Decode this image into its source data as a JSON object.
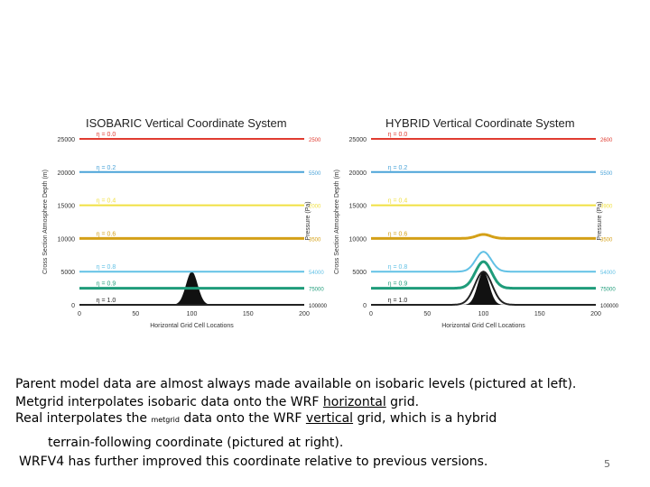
{
  "chart_data": [
    {
      "type": "line",
      "title": "ISOBARIC Vertical Coordinate System",
      "xlabel": "Horizontal Grid Cell Locations",
      "ylabel": "Cross Section Atmosphere Depth (m)",
      "y2label": "Pressure (Pa)",
      "xlim": [
        0,
        200
      ],
      "ylim": [
        0,
        25000
      ],
      "xticks": [
        "0",
        "50",
        "100",
        "150",
        "200"
      ],
      "yticks": [
        "25000",
        "20000",
        "15000",
        "10000",
        "5000",
        "0"
      ],
      "series": [
        {
          "name": "η = 0.0",
          "color": "#e03c31",
          "right_label": "2500",
          "height_m": 25000,
          "bump_m": 0
        },
        {
          "name": "η = 0.2",
          "color": "#4aa3d8",
          "right_label": "5500",
          "height_m": 20000,
          "bump_m": 0
        },
        {
          "name": "η = 0.4",
          "color": "#f0e042",
          "right_label": "2000",
          "height_m": 15000,
          "bump_m": 0
        },
        {
          "name": "η = 0.6",
          "color": "#d4a017",
          "right_label": "3500",
          "height_m": 10000,
          "bump_m": 0
        },
        {
          "name": "η = 0.8",
          "color": "#62c1e5",
          "right_label": "54000",
          "height_m": 5000,
          "bump_m": 0
        },
        {
          "name": "η = 0.9",
          "color": "#1f9c7a",
          "right_label": "75000",
          "height_m": 2500,
          "bump_m": 0
        },
        {
          "name": "η = 1.0",
          "color": "#222222",
          "right_label": "100000",
          "height_m": 0,
          "bump_m": 0
        }
      ],
      "terrain": {
        "peak_x": 100,
        "peak_m": 5000
      }
    },
    {
      "type": "line",
      "title": "HYBRID Vertical Coordinate System",
      "xlabel": "Horizontal Grid Cell Locations",
      "ylabel": "Cross Section Atmosphere Depth (m)",
      "y2label": "Pressure (Pa)",
      "xlim": [
        0,
        200
      ],
      "ylim": [
        0,
        25000
      ],
      "xticks": [
        "0",
        "50",
        "100",
        "150",
        "200"
      ],
      "yticks": [
        "25000",
        "20000",
        "15000",
        "10000",
        "5000",
        "0"
      ],
      "series": [
        {
          "name": "η = 0.0",
          "color": "#e03c31",
          "right_label": "2600",
          "height_m": 25000,
          "bump_m": 0
        },
        {
          "name": "η = 0.2",
          "color": "#4aa3d8",
          "right_label": "5500",
          "height_m": 20000,
          "bump_m": 0
        },
        {
          "name": "η = 0.4",
          "color": "#f0e042",
          "right_label": "3900",
          "height_m": 15000,
          "bump_m": 0
        },
        {
          "name": "η = 0.6",
          "color": "#d4a017",
          "right_label": "3500",
          "height_m": 10000,
          "bump_m": 600
        },
        {
          "name": "η = 0.8",
          "color": "#62c1e5",
          "right_label": "54000",
          "height_m": 5000,
          "bump_m": 3000
        },
        {
          "name": "η = 0.9",
          "color": "#1f9c7a",
          "right_label": "75000",
          "height_m": 2500,
          "bump_m": 4000
        },
        {
          "name": "η = 1.0",
          "color": "#222222",
          "right_label": "100000",
          "height_m": 0,
          "bump_m": 5000
        }
      ],
      "terrain": {
        "peak_x": 100,
        "peak_m": 5000
      }
    }
  ],
  "text": {
    "line1": "Parent model data are almost always made available on isobaric levels (pictured at left).",
    "line2_pre": "Metgrid interpolates isobaric data onto the WRF ",
    "line2_u": "horizontal",
    "line2_post": " grid.",
    "line3_a": "Real interpolates the ",
    "line3_small": "metgrid",
    "line3_b": " data onto the WRF ",
    "line3_u": "vertical",
    "line3_c": " grid, which is a hybrid",
    "line4": "terrain-following coordinate (pictured at right).",
    "line5": "WRFV4 has further improved this coordinate relative to previous versions."
  },
  "slide_number": "5"
}
